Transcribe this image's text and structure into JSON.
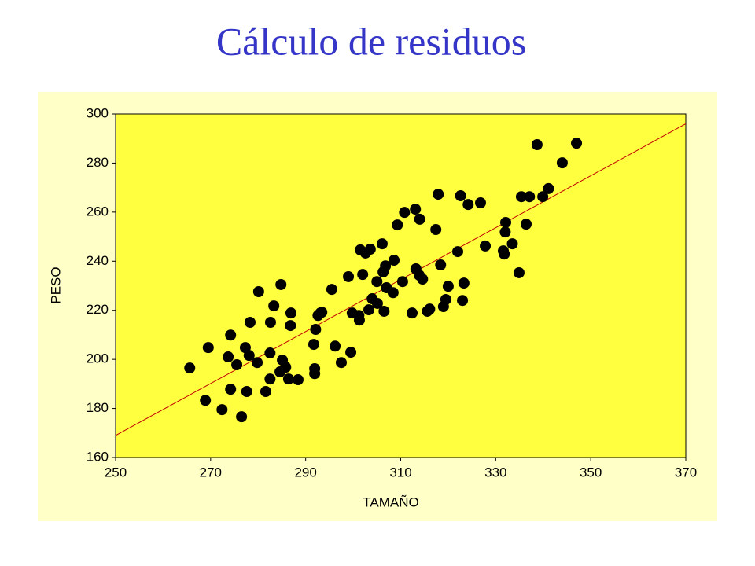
{
  "chart_data": {
    "type": "scatter",
    "title": "Cálculo de residuos",
    "x_label": "TAMAÑO",
    "y_label": "PESO",
    "x": [
      265.6,
      268.9,
      269.5,
      272.4,
      273.7,
      274.2,
      274.2,
      275.5,
      276.5,
      277.3,
      277.6,
      278.1,
      278.3,
      279.8,
      280.1,
      281.6,
      282.5,
      282.5,
      282.6,
      283.3,
      284.6,
      284.8,
      285.1,
      285.8,
      286.4,
      286.8,
      286.9,
      288.4,
      291.7,
      291.9,
      291.9,
      292.1,
      292.6,
      293.1,
      293.4,
      295.5,
      296.2,
      297.5,
      299.0,
      299.5,
      299.8,
      301.2,
      301.3,
      301.5,
      302.0,
      302.6,
      303.3,
      303.6,
      304.0,
      305.0,
      305.1,
      306.1,
      306.3,
      306.5,
      306.8,
      307.0,
      308.4,
      308.6,
      309.3,
      310.4,
      310.8,
      312.4,
      313.1,
      313.2,
      313.9,
      314.0,
      314.6,
      315.6,
      316.1,
      317.4,
      317.9,
      318.4,
      319.0,
      319.5,
      320.0,
      322.0,
      322.6,
      323.0,
      323.3,
      324.2,
      326.8,
      327.8,
      331.6,
      331.8,
      332.0,
      332.1,
      333.5,
      334.9,
      335.4,
      336.4,
      337.1,
      338.7,
      339.9,
      341.1,
      344.0,
      347.0
    ],
    "values": [
      196.5,
      183.3,
      204.8,
      179.5,
      201.0,
      209.9,
      187.8,
      197.8,
      176.6,
      204.8,
      186.9,
      201.6,
      215.1,
      198.7,
      227.6,
      186.9,
      192.0,
      202.6,
      215.1,
      221.8,
      194.9,
      230.5,
      199.7,
      196.8,
      192.0,
      213.8,
      218.9,
      191.7,
      206.1,
      194.2,
      196.2,
      212.2,
      217.9,
      218.9,
      219.2,
      228.5,
      205.4,
      198.7,
      233.7,
      202.9,
      218.9,
      217.9,
      216.0,
      244.6,
      234.6,
      243.3,
      220.2,
      244.9,
      224.7,
      231.7,
      222.8,
      247.1,
      235.6,
      219.6,
      238.1,
      229.2,
      227.2,
      240.4,
      254.8,
      231.7,
      259.9,
      218.9,
      261.2,
      236.9,
      234.3,
      257.1,
      232.7,
      219.6,
      220.5,
      252.9,
      267.3,
      238.5,
      221.5,
      224.4,
      229.8,
      243.9,
      266.7,
      224.0,
      231.1,
      263.1,
      263.8,
      246.2,
      244.2,
      242.9,
      251.9,
      255.8,
      247.1,
      235.3,
      266.3,
      255.1,
      266.3,
      287.5,
      266.3,
      269.6,
      280.1,
      288.1
    ],
    "color": "#000000",
    "fit_line": {
      "x": [
        250,
        370
      ],
      "values": [
        169,
        296
      ],
      "color": "#c00000"
    },
    "xlim": [
      250,
      370
    ],
    "xticks": [
      250,
      270,
      290,
      310,
      330,
      350,
      370
    ],
    "ylim": [
      160,
      300
    ],
    "yticks": [
      160,
      180,
      200,
      220,
      240,
      260,
      280,
      300
    ],
    "background": "#ffff40"
  }
}
